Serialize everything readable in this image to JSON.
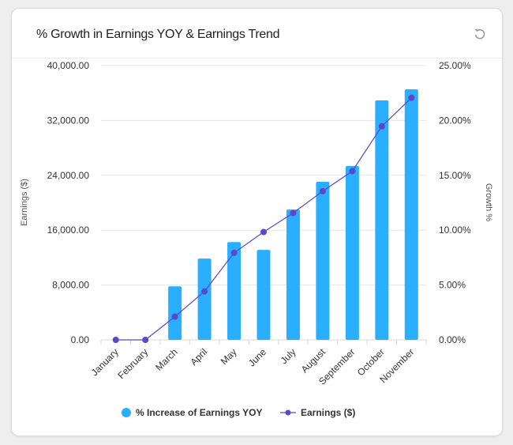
{
  "header": {
    "title": "% Growth in Earnings YOY & Earnings Trend",
    "reset_icon": "reset-icon"
  },
  "chart_data": {
    "type": "bar",
    "title": "% Growth in Earnings YOY & Earnings Trend",
    "categories": [
      "January",
      "February",
      "March",
      "April",
      "May",
      "June",
      "July",
      "August",
      "September",
      "October",
      "November"
    ],
    "series": [
      {
        "name": "% Increase of Earnings YOY",
        "type": "bar",
        "axis": "right",
        "color": "#2aaeff",
        "values": [
          0,
          0,
          4.88,
          7.41,
          8.92,
          8.2,
          11.88,
          14.41,
          15.85,
          21.83,
          22.84
        ]
      },
      {
        "name": "Earnings ($)",
        "type": "line",
        "axis": "left",
        "color": "#5b47c9",
        "values": [
          0,
          0,
          3385,
          7070,
          12690,
          15730,
          18500,
          21690,
          24610,
          31150,
          35300
        ]
      }
    ],
    "ylabel": "Earnings ($)",
    "y2label": "Growth %",
    "ylim": [
      0,
      40000
    ],
    "y2lim": [
      0,
      25
    ],
    "yticks": [
      "0.00",
      "8,000.00",
      "16,000.00",
      "24,000.00",
      "32,000.00",
      "40,000.00"
    ],
    "y2ticks": [
      "0.00%",
      "5.00%",
      "10.00%",
      "15.00%",
      "20.00%",
      "25.00%"
    ],
    "grid": true,
    "legend": "bottom-center"
  }
}
